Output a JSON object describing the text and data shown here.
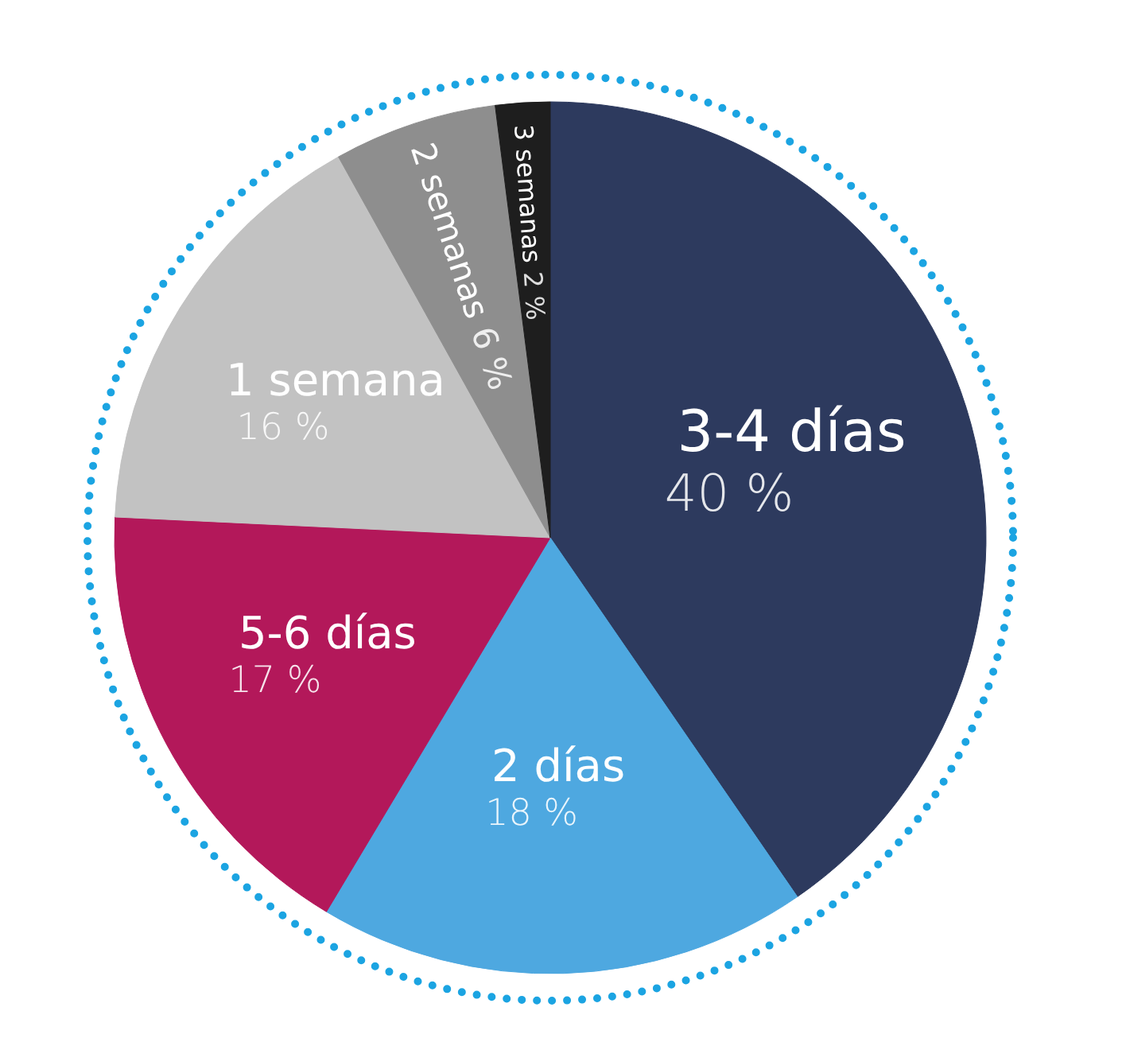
{
  "chart_data": {
    "type": "pie",
    "categories": [
      "3-4 días",
      "2 días",
      "5-6 días",
      "1 semana",
      "2 semanas",
      "3 semanas"
    ],
    "values": [
      40,
      18,
      17,
      16,
      6,
      2
    ],
    "colors": [
      "#2d3a5e",
      "#4ea8e0",
      "#b3185a",
      "#c2c2c2",
      "#8e8e8e",
      "#1e1e1e"
    ],
    "value_labels": [
      "40 %",
      "18 %",
      "17 %",
      "16 %",
      "6 %",
      "2 %"
    ],
    "legend": false
  }
}
